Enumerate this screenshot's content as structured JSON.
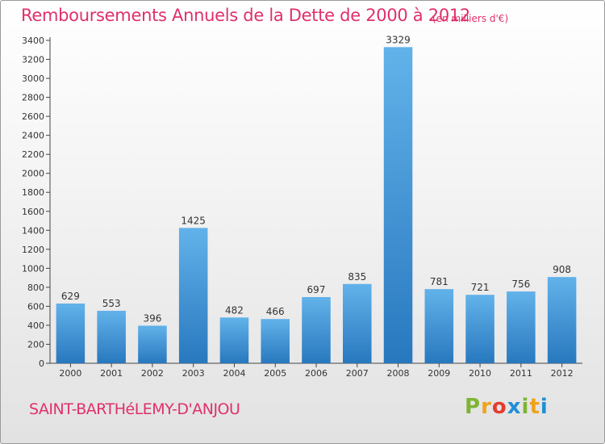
{
  "header": {
    "title": "Remboursements Annuels de la Dette de 2000 à 2012",
    "unit": "(en milliers d'€)"
  },
  "footer": {
    "commune": "SAINT-BARTHéLEMY-D'ANJOU",
    "logo_letters": [
      "P",
      "r",
      "o",
      "x",
      "i",
      "t",
      "i"
    ],
    "logo_colors": [
      "#7db533",
      "#f0a21b",
      "#e23c2e",
      "#1f8fd6",
      "#7db533",
      "#f0a21b",
      "#1f8fd6"
    ]
  },
  "colors": {
    "accent": "#e0306a",
    "bar_light": "#62b2ea",
    "bar_dark": "#2878bf",
    "axis": "#444444",
    "grid": "#bdbdbd"
  },
  "chart_data": {
    "type": "bar",
    "categories": [
      "2000",
      "2001",
      "2002",
      "2003",
      "2004",
      "2005",
      "2006",
      "2007",
      "2008",
      "2009",
      "2010",
      "2011",
      "2012"
    ],
    "values": [
      629,
      553,
      396,
      1425,
      482,
      466,
      697,
      835,
      3329,
      781,
      721,
      756,
      908
    ],
    "ylim": [
      0,
      3400
    ],
    "yticks": [
      0,
      200,
      400,
      600,
      800,
      1000,
      1200,
      1400,
      1600,
      1800,
      2000,
      2200,
      2400,
      2600,
      2800,
      3000,
      3200,
      3400
    ],
    "data_labels": true,
    "grid": false
  }
}
